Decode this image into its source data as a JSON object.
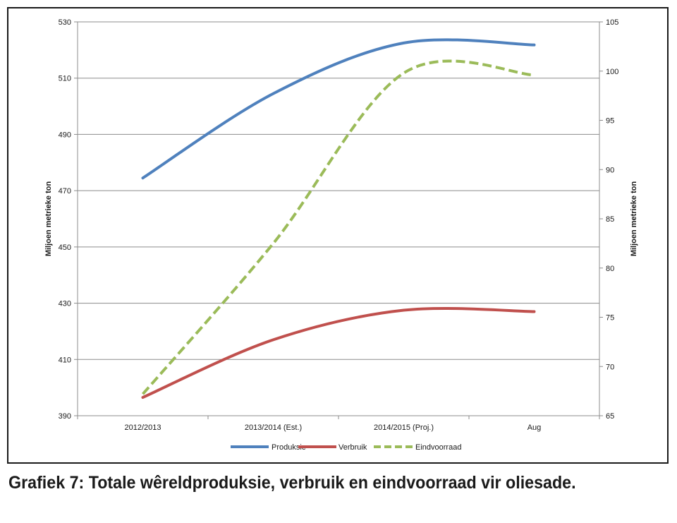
{
  "caption": "Grafiek 7: Totale wêreldproduksie, verbruik en eindvoorraad vir oliesade.",
  "chart_data": {
    "type": "line",
    "categories": [
      "2012/2013",
      "2013/2014 (Est.)",
      "2014/2015 (Proj.)",
      "Aug"
    ],
    "left_axis": {
      "label": "Miljoen metrieke ton",
      "range": [
        390,
        530
      ],
      "ticks": [
        "390",
        "410",
        "430",
        "450",
        "470",
        "490",
        "510",
        "530"
      ]
    },
    "right_axis": {
      "label": "Miljoen metrieke ton",
      "range": [
        65,
        105
      ],
      "ticks": [
        "65",
        "70",
        "75",
        "80",
        "85",
        "90",
        "95",
        "100",
        "105"
      ]
    },
    "grid": true,
    "legend_position": "bottom",
    "series": [
      {
        "name": "Produksie",
        "axis": "left",
        "values": [
          474.5,
          504.5,
          522.5,
          521.8
        ],
        "color": "#4f81bd",
        "dashed": false
      },
      {
        "name": "Verbruik",
        "axis": "left",
        "values": [
          396.5,
          417,
          427.5,
          427
        ],
        "color": "#c0504d",
        "dashed": false
      },
      {
        "name": "Eindvoorraad",
        "axis": "right",
        "values": [
          67.2,
          82.5,
          99.8,
          99.6
        ],
        "color": "#9bbb59",
        "dashed": true
      }
    ]
  }
}
